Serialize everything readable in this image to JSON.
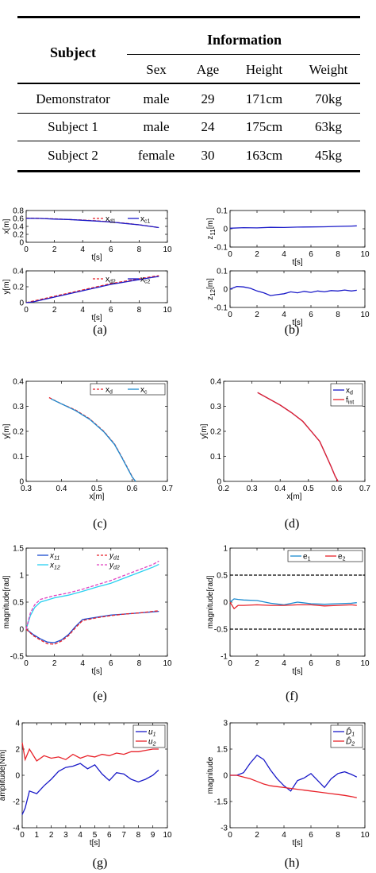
{
  "table": {
    "header": {
      "subject": "Subject",
      "information": "Information",
      "sex": "Sex",
      "age": "Age",
      "height": "Height",
      "weight": "Weight"
    },
    "rows": [
      {
        "subject": "Demonstrator",
        "sex": "male",
        "age": "29",
        "height": "171cm",
        "weight": "70kg"
      },
      {
        "subject": "Subject 1",
        "sex": "male",
        "age": "24",
        "height": "175cm",
        "weight": "63kg"
      },
      {
        "subject": "Subject 2",
        "sex": "female",
        "age": "30",
        "height": "163cm",
        "weight": "45kg"
      }
    ]
  },
  "captions": [
    "(a)",
    "(b)",
    "(c)",
    "(d)",
    "(e)",
    "(f)",
    "(g)",
    "(h)"
  ],
  "chart_data": [
    {
      "id": "a1",
      "type": "line",
      "xlabel": "t[s]",
      "ylabel": "x[m]",
      "xlim": [
        0,
        10
      ],
      "ylim": [
        0,
        0.8
      ],
      "xticks": [
        0,
        2,
        4,
        6,
        8,
        10
      ],
      "yticks": [
        0,
        0.2,
        0.4,
        0.6,
        0.8
      ],
      "legend_pos": "top-right",
      "series": [
        {
          "name": "x_d1",
          "color": "#e8222a",
          "dash": true,
          "x": [
            0,
            1,
            2,
            3,
            4,
            5,
            6,
            7,
            8,
            9,
            9.4
          ],
          "y": [
            0.61,
            0.6,
            0.59,
            0.575,
            0.56,
            0.54,
            0.51,
            0.48,
            0.44,
            0.39,
            0.37
          ]
        },
        {
          "name": "x_c1",
          "color": "#1a1ac8",
          "dash": false,
          "x": [
            0,
            1,
            2,
            3,
            4,
            5,
            6,
            7,
            8,
            9,
            9.4
          ],
          "y": [
            0.605,
            0.6,
            0.585,
            0.575,
            0.555,
            0.535,
            0.51,
            0.475,
            0.44,
            0.39,
            0.37
          ]
        }
      ]
    },
    {
      "id": "a2",
      "type": "line",
      "xlabel": "t[s]",
      "ylabel": "y[m]",
      "xlim": [
        0,
        10
      ],
      "ylim": [
        0,
        0.4
      ],
      "xticks": [
        0,
        2,
        4,
        6,
        8,
        10
      ],
      "yticks": [
        0,
        0.2,
        0.4
      ],
      "legend_pos": "top-right",
      "series": [
        {
          "name": "x_d2",
          "color": "#e8222a",
          "dash": true,
          "x": [
            0,
            0.5,
            1,
            2,
            3,
            4,
            5,
            6,
            7,
            8,
            9,
            9.4
          ],
          "y": [
            0,
            0.02,
            0.04,
            0.08,
            0.12,
            0.16,
            0.2,
            0.24,
            0.27,
            0.3,
            0.33,
            0.34
          ]
        },
        {
          "name": "x_c2",
          "color": "#1a1ac8",
          "dash": false,
          "x": [
            0,
            0.5,
            1,
            2,
            3,
            4,
            5,
            6,
            7,
            8,
            9,
            9.4
          ],
          "y": [
            0,
            0.01,
            0.03,
            0.07,
            0.11,
            0.15,
            0.19,
            0.23,
            0.26,
            0.29,
            0.32,
            0.33
          ]
        }
      ]
    },
    {
      "id": "b1",
      "type": "line",
      "xlabel": "t[s]",
      "ylabel": "z_11[m]",
      "xlim": [
        0,
        10
      ],
      "ylim": [
        -0.1,
        0.1
      ],
      "xticks": [
        0,
        2,
        4,
        6,
        8,
        10
      ],
      "yticks": [
        -0.1,
        0,
        0.1
      ],
      "series": [
        {
          "color": "#1a1ac8",
          "x": [
            0,
            1,
            2,
            3,
            4,
            5,
            6,
            7,
            8,
            9,
            9.4
          ],
          "y": [
            0.003,
            0.006,
            0.005,
            0.008,
            0.007,
            0.009,
            0.01,
            0.011,
            0.013,
            0.015,
            0.016
          ]
        }
      ]
    },
    {
      "id": "b2",
      "type": "line",
      "xlabel": "t[s]",
      "ylabel": "z_12[m]",
      "xlim": [
        0,
        10
      ],
      "ylim": [
        -0.1,
        0.1
      ],
      "xticks": [
        0,
        2,
        4,
        6,
        8,
        10
      ],
      "yticks": [
        -0.1,
        0,
        0.1
      ],
      "series": [
        {
          "color": "#1a1ac8",
          "x": [
            0,
            0.5,
            1,
            1.5,
            2,
            2.5,
            3,
            3.5,
            4,
            4.5,
            5,
            5.5,
            6,
            6.5,
            7,
            7.5,
            8,
            8.5,
            9,
            9.4
          ],
          "y": [
            0,
            0.015,
            0.012,
            0.005,
            -0.01,
            -0.02,
            -0.035,
            -0.03,
            -0.025,
            -0.015,
            -0.02,
            -0.012,
            -0.018,
            -0.01,
            -0.015,
            -0.008,
            -0.01,
            -0.005,
            -0.01,
            -0.006
          ]
        }
      ]
    },
    {
      "id": "c",
      "type": "line",
      "xlabel": "x[m]",
      "ylabel": "y[m]",
      "xlim": [
        0.3,
        0.7
      ],
      "ylim": [
        0,
        0.4
      ],
      "xticks": [
        0.3,
        0.4,
        0.5,
        0.6,
        0.7
      ],
      "yticks": [
        0,
        0.1,
        0.2,
        0.3,
        0.4
      ],
      "legend_pos": "top-right",
      "series": [
        {
          "name": "x_d",
          "color": "#e8222a",
          "dash": true,
          "x": [
            0.365,
            0.4,
            0.44,
            0.48,
            0.52,
            0.55,
            0.57,
            0.585,
            0.6,
            0.608
          ],
          "y": [
            0.335,
            0.31,
            0.285,
            0.25,
            0.2,
            0.15,
            0.1,
            0.06,
            0.02,
            0
          ]
        },
        {
          "name": "x_c",
          "color": "#1a8ad0",
          "dash": false,
          "x": [
            0.37,
            0.4,
            0.44,
            0.48,
            0.52,
            0.55,
            0.57,
            0.585,
            0.6,
            0.61
          ],
          "y": [
            0.33,
            0.31,
            0.283,
            0.248,
            0.198,
            0.148,
            0.098,
            0.058,
            0.018,
            0
          ]
        }
      ]
    },
    {
      "id": "d",
      "type": "line",
      "xlabel": "x[m]",
      "ylabel": "y[m]",
      "xlim": [
        0.2,
        0.7
      ],
      "ylim": [
        0,
        0.4
      ],
      "xticks": [
        0.2,
        0.3,
        0.4,
        0.5,
        0.6,
        0.7
      ],
      "yticks": [
        0,
        0.1,
        0.2,
        0.3,
        0.4
      ],
      "legend_pos": "top-right",
      "series": [
        {
          "name": "x_d",
          "color": "#1a1ac8",
          "dash": false,
          "x": [
            0.32,
            0.36,
            0.4,
            0.44,
            0.48,
            0.51,
            0.54,
            0.56,
            0.58,
            0.595,
            0.605
          ],
          "y": [
            0.355,
            0.33,
            0.305,
            0.275,
            0.24,
            0.2,
            0.16,
            0.11,
            0.06,
            0.02,
            0
          ]
        },
        {
          "name": "f_int",
          "color": "#e8222a",
          "dash": false,
          "x": [
            0.32,
            0.36,
            0.4,
            0.44,
            0.48,
            0.51,
            0.54,
            0.56,
            0.58,
            0.595,
            0.605
          ],
          "y": [
            0.355,
            0.33,
            0.305,
            0.275,
            0.24,
            0.2,
            0.16,
            0.11,
            0.06,
            0.02,
            0
          ]
        }
      ]
    },
    {
      "id": "e",
      "type": "line",
      "xlabel": "t[s]",
      "ylabel": "magnitude[rad]",
      "xlim": [
        0,
        10
      ],
      "ylim": [
        -0.5,
        1.5
      ],
      "xticks": [
        0,
        2,
        4,
        6,
        8,
        10
      ],
      "yticks": [
        -0.5,
        0,
        0.5,
        1,
        1.5
      ],
      "legend_pos": "top",
      "series": [
        {
          "name": "x_11",
          "color": "#1a4ad0",
          "dash": false,
          "x": [
            0,
            0.5,
            1,
            1.5,
            2,
            2.5,
            3,
            3.5,
            4,
            5,
            6,
            7,
            8,
            9,
            9.4
          ],
          "y": [
            0,
            -0.1,
            -0.18,
            -0.24,
            -0.25,
            -0.2,
            -0.1,
            0.05,
            0.18,
            0.22,
            0.26,
            0.28,
            0.3,
            0.32,
            0.33
          ]
        },
        {
          "name": "y_d1",
          "color": "#e8222a",
          "dash": true,
          "x": [
            0,
            0.5,
            1,
            1.5,
            2,
            2.5,
            3,
            3.5,
            4,
            5,
            6,
            7,
            8,
            9,
            9.4
          ],
          "y": [
            0,
            -0.12,
            -0.2,
            -0.27,
            -0.28,
            -0.22,
            -0.12,
            0.03,
            0.16,
            0.21,
            0.25,
            0.28,
            0.3,
            0.33,
            0.34
          ]
        },
        {
          "name": "x_12",
          "color": "#2ad0f0",
          "dash": false,
          "x": [
            0,
            0.3,
            0.6,
            1,
            2,
            3,
            4,
            5,
            6,
            7,
            8,
            9,
            9.4
          ],
          "y": [
            0,
            0.25,
            0.4,
            0.5,
            0.58,
            0.63,
            0.7,
            0.78,
            0.85,
            0.95,
            1.05,
            1.15,
            1.2
          ]
        },
        {
          "name": "y_d2",
          "color": "#e040c0",
          "dash": true,
          "x": [
            0,
            0.3,
            0.6,
            1,
            2,
            3,
            4,
            5,
            6,
            7,
            8,
            9,
            9.4
          ],
          "y": [
            0,
            0.3,
            0.45,
            0.55,
            0.62,
            0.67,
            0.74,
            0.82,
            0.9,
            1.0,
            1.1,
            1.2,
            1.26
          ]
        }
      ]
    },
    {
      "id": "f",
      "type": "line",
      "xlabel": "t[s]",
      "ylabel": "magnitude[rad]",
      "xlim": [
        0,
        10
      ],
      "ylim": [
        -1,
        1
      ],
      "xticks": [
        0,
        2,
        4,
        6,
        8,
        10
      ],
      "yticks": [
        -1,
        -0.5,
        0,
        0.5,
        1
      ],
      "legend_pos": "top-right",
      "series": [
        {
          "name": "e_1",
          "color": "#1a8ad0",
          "dash": false,
          "x": [
            0,
            0.3,
            0.6,
            1,
            2,
            3,
            4,
            5,
            6,
            7,
            8,
            9,
            9.4
          ],
          "y": [
            0,
            0.06,
            0.05,
            0.04,
            0.03,
            -0.02,
            -0.05,
            0,
            -0.03,
            -0.04,
            -0.03,
            -0.02,
            -0.01
          ]
        },
        {
          "name": "e_2",
          "color": "#e8222a",
          "dash": false,
          "x": [
            0,
            0.3,
            0.6,
            1,
            2,
            3,
            4,
            5,
            6,
            7,
            8,
            9,
            9.4
          ],
          "y": [
            0,
            -0.12,
            -0.06,
            -0.06,
            -0.05,
            -0.06,
            -0.06,
            -0.05,
            -0.05,
            -0.07,
            -0.06,
            -0.05,
            -0.06
          ]
        },
        {
          "name": "",
          "color": "#000",
          "dash": true,
          "x": [
            0,
            10
          ],
          "y": [
            0.5,
            0.5
          ]
        },
        {
          "name": "",
          "color": "#000",
          "dash": true,
          "x": [
            0,
            10
          ],
          "y": [
            -0.5,
            -0.5
          ]
        }
      ]
    },
    {
      "id": "g",
      "type": "line",
      "xlabel": "t[s]",
      "ylabel": "amplitude[Nm]",
      "xlim": [
        0,
        10
      ],
      "ylim": [
        -4,
        4
      ],
      "xticks": [
        0,
        1,
        2,
        3,
        4,
        5,
        6,
        7,
        8,
        9,
        10
      ],
      "yticks": [
        -4,
        -2,
        0,
        2,
        4
      ],
      "legend_pos": "top-right",
      "series": [
        {
          "name": "u_1",
          "color": "#1a1ac8",
          "dash": false,
          "x": [
            0,
            0.2,
            0.5,
            1,
            1.5,
            2,
            2.5,
            3,
            3.5,
            4,
            4.5,
            5,
            5.5,
            6,
            6.5,
            7,
            7.5,
            8,
            8.5,
            9,
            9.4
          ],
          "y": [
            -3,
            -2.5,
            -1.2,
            -1.4,
            -0.8,
            -0.3,
            0.3,
            0.6,
            0.7,
            0.9,
            0.5,
            0.8,
            0.1,
            -0.4,
            0.2,
            0.1,
            -0.3,
            -0.5,
            -0.3,
            0,
            0.4
          ]
        },
        {
          "name": "u_2",
          "color": "#e8222a",
          "dash": false,
          "x": [
            0,
            0.2,
            0.5,
            1,
            1.5,
            2,
            2.5,
            3,
            3.5,
            4,
            4.5,
            5,
            5.5,
            6,
            6.5,
            7,
            7.5,
            8,
            8.5,
            9,
            9.4
          ],
          "y": [
            2.5,
            1.2,
            2,
            1.1,
            1.5,
            1.3,
            1.4,
            1.2,
            1.6,
            1.3,
            1.5,
            1.4,
            1.6,
            1.5,
            1.7,
            1.6,
            1.8,
            1.8,
            1.9,
            2,
            2
          ]
        }
      ]
    },
    {
      "id": "h",
      "type": "line",
      "xlabel": "t[s]",
      "ylabel": "magnitude",
      "xlim": [
        0,
        10
      ],
      "ylim": [
        -3,
        3
      ],
      "xticks": [
        0,
        2,
        4,
        6,
        8,
        10
      ],
      "yticks": [
        -3,
        -1.5,
        0,
        1.5,
        3
      ],
      "legend_pos": "top-right",
      "series": [
        {
          "name": "D̂_1",
          "color": "#1a1ac8",
          "dash": false,
          "x": [
            0,
            0.5,
            1,
            1.5,
            2,
            2.5,
            3,
            3.5,
            4,
            4.5,
            5,
            5.5,
            6,
            6.5,
            7,
            7.5,
            8,
            8.5,
            9,
            9.4
          ],
          "y": [
            0,
            0,
            0.15,
            0.7,
            1.15,
            0.9,
            0.3,
            -0.2,
            -0.6,
            -0.9,
            -0.3,
            -0.15,
            0.1,
            -0.3,
            -0.7,
            -0.2,
            0.1,
            0.2,
            0.05,
            -0.1
          ]
        },
        {
          "name": "D̂_2",
          "color": "#e8222a",
          "dash": false,
          "x": [
            0,
            0.5,
            1,
            1.5,
            2,
            2.5,
            3,
            3.5,
            4,
            4.5,
            5,
            5.5,
            6,
            6.5,
            7,
            7.5,
            8,
            8.5,
            9,
            9.4
          ],
          "y": [
            0,
            0,
            -0.1,
            -0.2,
            -0.35,
            -0.5,
            -0.6,
            -0.65,
            -0.7,
            -0.75,
            -0.8,
            -0.85,
            -0.9,
            -0.95,
            -1.0,
            -1.05,
            -1.1,
            -1.15,
            -1.22,
            -1.28
          ]
        }
      ]
    }
  ]
}
